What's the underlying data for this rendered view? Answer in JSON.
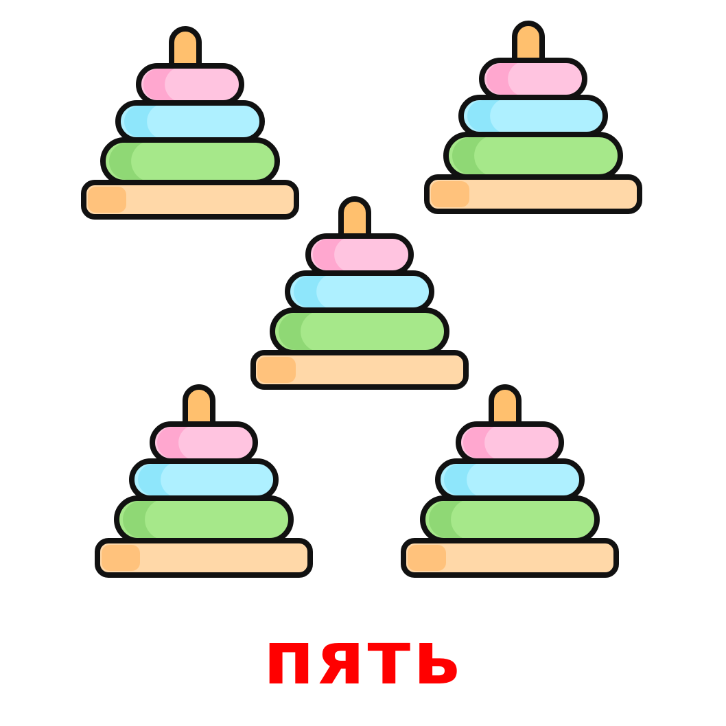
{
  "caption": "пять",
  "count": 5,
  "icon": "stacking-rings-pyramid-icon",
  "colors": {
    "caption": "#ff0000",
    "outline": "#111111",
    "peg": "#ffc06e",
    "ring_pink": "#ffb5d8",
    "ring_blue": "#aef0ff",
    "ring_green": "#a6e88a",
    "base": "#ffd8a8"
  }
}
